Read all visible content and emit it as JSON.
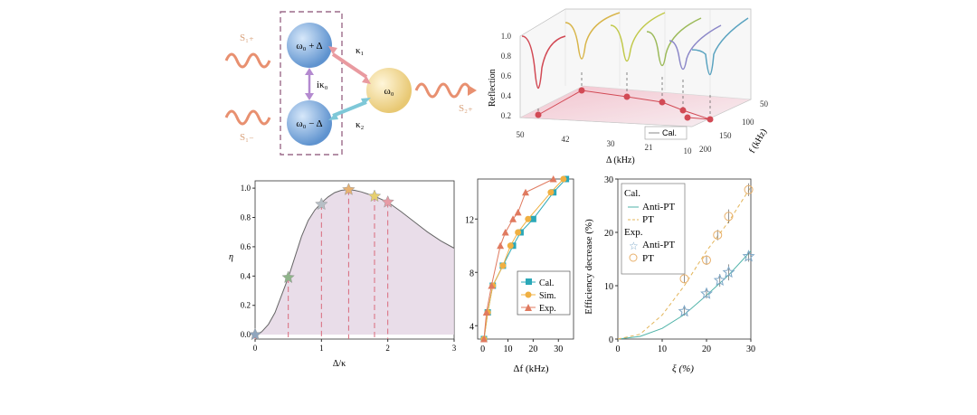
{
  "schematic": {
    "top_sphere_label": "ω₀ + Δ",
    "bottom_sphere_label": "ω₀ − Δ",
    "right_sphere_label": "ω₀",
    "coupling_vertical": "iκ₀",
    "coupling_top": "κ₁",
    "coupling_bottom": "κ₂",
    "input_top": "S₁₊",
    "input_bottom": "S₁₋",
    "output": "S₂₊",
    "colors": {
      "top_sphere": "#6fa0d8",
      "right_sphere": "#f0d890",
      "arrow_top": "#e99aa0",
      "arrow_bottom": "#7ec8d8",
      "wave": "#e89070"
    }
  },
  "chart_data": [
    {
      "type": "line",
      "id": "reflection3d",
      "zlabel": "Reflection",
      "xlabel": "Δ (kHz)",
      "ylabel": "f (kHz)",
      "z_ticks": [
        "0.2",
        "0.4",
        "0.6",
        "0.8",
        "1.0"
      ],
      "x_ticks": [
        "50",
        "42",
        "30",
        "21",
        "10"
      ],
      "y_ticks": [
        "50",
        "100",
        "150",
        "200"
      ],
      "legend": [
        "Cal."
      ],
      "colors": [
        "#d24a55",
        "#d8b54a",
        "#c1c94a",
        "#9cba5a",
        "#8b87c8",
        "#5aa3c0"
      ]
    },
    {
      "type": "area",
      "id": "eta",
      "xlabel": "Δ/κ",
      "ylabel": "η",
      "xlim": [
        0,
        3
      ],
      "ylim": [
        -0.03,
        1.05
      ],
      "x_ticks": [
        "0",
        "1",
        "2",
        "3"
      ],
      "y_ticks": [
        "0.0",
        "0.2",
        "0.4",
        "0.6",
        "0.8",
        "1.0"
      ],
      "curve_x": [
        0,
        0.1,
        0.2,
        0.3,
        0.4,
        0.5,
        0.6,
        0.7,
        0.8,
        0.9,
        1.0,
        1.1,
        1.2,
        1.3,
        1.4,
        1.5,
        1.6,
        1.7,
        1.8,
        1.9,
        2.0,
        2.2,
        2.4,
        2.6,
        2.8,
        3.0
      ],
      "curve_y": [
        0,
        0.02,
        0.07,
        0.15,
        0.27,
        0.39,
        0.53,
        0.67,
        0.78,
        0.85,
        0.9,
        0.94,
        0.97,
        0.985,
        0.99,
        0.985,
        0.975,
        0.96,
        0.945,
        0.925,
        0.905,
        0.84,
        0.77,
        0.7,
        0.64,
        0.59
      ],
      "stars": [
        {
          "x": 0,
          "y": 0.0,
          "color": "#8fa5bd"
        },
        {
          "x": 0.5,
          "y": 0.39,
          "color": "#8fb58a"
        },
        {
          "x": 1.0,
          "y": 0.89,
          "color": "#b6bfc6"
        },
        {
          "x": 1.41,
          "y": 0.99,
          "color": "#e8b270"
        },
        {
          "x": 1.8,
          "y": 0.945,
          "color": "#e6cf6f"
        },
        {
          "x": 2.0,
          "y": 0.905,
          "color": "#e79aa5"
        }
      ],
      "fill_color": "#e4d4e4"
    },
    {
      "type": "line",
      "id": "delta_f",
      "xlabel": "Δf (kHz)",
      "ylabel": "",
      "xlim": [
        -2,
        36
      ],
      "ylim": [
        3,
        15
      ],
      "x_ticks": [
        "0",
        "10",
        "20",
        "30"
      ],
      "y_ticks": [
        "4",
        "8",
        "12"
      ],
      "legend": [
        "Cal.",
        "Sim.",
        "Exp."
      ],
      "series": [
        {
          "name": "Cal.",
          "color": "#2aa8b8",
          "x": [
            0.5,
            2,
            4,
            8,
            12,
            15,
            20,
            28,
            33
          ],
          "y": [
            3,
            5,
            7,
            8.5,
            10,
            11,
            12,
            14,
            15
          ]
        },
        {
          "name": "Sim.",
          "color": "#f0b042",
          "x": [
            0.5,
            2,
            4,
            8,
            11,
            14,
            18,
            27,
            32
          ],
          "y": [
            3,
            5,
            7,
            8.5,
            10,
            11,
            12,
            14,
            15
          ]
        },
        {
          "name": "Exp.",
          "color": "#e07a5f",
          "x": [
            0.5,
            1.5,
            3.5,
            7,
            9,
            12,
            14,
            17,
            28
          ],
          "y": [
            3,
            5,
            7,
            10,
            11,
            12,
            12.5,
            14,
            15
          ]
        }
      ]
    },
    {
      "type": "scatter",
      "id": "efficiency",
      "xlabel": "ξ (%)",
      "ylabel": "Efficiency decrease (%)",
      "xlim": [
        0,
        30
      ],
      "ylim": [
        0,
        30
      ],
      "x_ticks": [
        "0",
        "10",
        "20",
        "30"
      ],
      "y_ticks": [
        "0",
        "10",
        "20",
        "30"
      ],
      "legend_cal": "Cal.",
      "legend_exp": "Exp.",
      "legend_items": [
        "Anti-PT",
        "PT",
        "Anti-PT",
        "PT"
      ],
      "anti_pt_curve": {
        "color": "#4fb3a8",
        "x": [
          0,
          5,
          10,
          15,
          20,
          25,
          30
        ],
        "y": [
          0,
          0.5,
          2,
          4.6,
          8.2,
          12.0,
          16.5
        ]
      },
      "pt_curve": {
        "color": "#e3b55a",
        "x": [
          0,
          5,
          10,
          15,
          20,
          25,
          30
        ],
        "y": [
          0,
          0.9,
          4.5,
          10,
          16.5,
          22,
          28.5
        ]
      },
      "anti_pt_points": {
        "color": "#7ea8c8",
        "x": [
          15,
          20,
          23,
          25,
          29.5
        ],
        "y": [
          5.2,
          8.5,
          11,
          12.5,
          15.5
        ],
        "err": [
          0.8,
          0.9,
          1.2,
          1.5,
          1.0
        ]
      },
      "pt_points": {
        "color": "#e8b06a",
        "x": [
          15,
          20,
          22.5,
          25,
          29.5
        ],
        "y": [
          11.3,
          14.8,
          19.5,
          23,
          28
        ],
        "err": [
          0.8,
          0.9,
          1.0,
          1.3,
          1.2
        ]
      }
    }
  ]
}
